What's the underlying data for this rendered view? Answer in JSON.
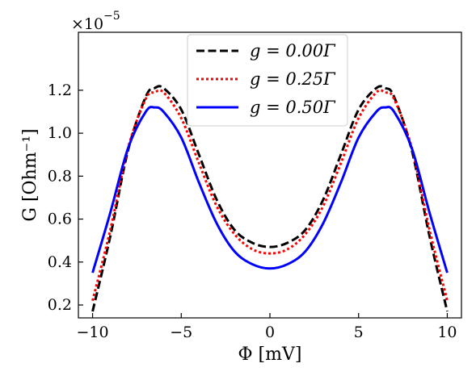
{
  "chart_data": {
    "type": "line",
    "xlabel": "Φ [mV]",
    "ylabel": "G [Ohm⁻¹]",
    "y_scale_label": "×10",
    "y_scale_exponent": "−5",
    "xlim": [
      -10.8,
      10.8
    ],
    "ylim": [
      0.14,
      1.47
    ],
    "x_ticks": [
      -10,
      -5,
      0,
      5,
      10
    ],
    "x_tick_labels": [
      "−10",
      "−5",
      "0",
      "5",
      "10"
    ],
    "y_ticks": [
      0.2,
      0.4,
      0.6,
      0.8,
      1.0,
      1.2
    ],
    "y_tick_labels": [
      "0.2",
      "0.4",
      "0.6",
      "0.8",
      "1.0",
      "1.2"
    ],
    "legend_position": "top-center",
    "series": [
      {
        "name": "g = 0.00Γ",
        "color": "#000000",
        "style": "dashed",
        "x": [
          -10,
          -9,
          -8,
          -7,
          -6.5,
          -6,
          -5,
          -4,
          -3,
          -2,
          -1,
          0,
          1,
          2,
          3,
          4,
          5,
          6,
          6.5,
          7,
          8,
          9,
          10
        ],
        "y": [
          0.17,
          0.52,
          0.92,
          1.17,
          1.21,
          1.21,
          1.11,
          0.9,
          0.69,
          0.55,
          0.49,
          0.47,
          0.49,
          0.55,
          0.69,
          0.9,
          1.11,
          1.21,
          1.21,
          1.17,
          0.92,
          0.52,
          0.17
        ]
      },
      {
        "name": "g = 0.25Γ",
        "color": "#ff0000",
        "style": "dotted",
        "x": [
          -10,
          -9,
          -8,
          -7,
          -6.5,
          -6,
          -5,
          -4,
          -3,
          -2,
          -1,
          0,
          1,
          2,
          3,
          4,
          5,
          6,
          6.5,
          7,
          8,
          9,
          10
        ],
        "y": [
          0.22,
          0.55,
          0.93,
          1.16,
          1.19,
          1.19,
          1.07,
          0.86,
          0.66,
          0.53,
          0.46,
          0.44,
          0.46,
          0.53,
          0.66,
          0.86,
          1.07,
          1.19,
          1.19,
          1.16,
          0.93,
          0.55,
          0.22
        ]
      },
      {
        "name": "g = 0.50Γ",
        "color": "#0000ff",
        "style": "solid",
        "x": [
          -10,
          -9,
          -8,
          -7,
          -6.5,
          -6,
          -5,
          -4,
          -3,
          -2,
          -1,
          0,
          1,
          2,
          3,
          4,
          5,
          6,
          6.5,
          7,
          8,
          9,
          10
        ],
        "y": [
          0.35,
          0.63,
          0.93,
          1.1,
          1.12,
          1.1,
          0.98,
          0.77,
          0.58,
          0.45,
          0.39,
          0.37,
          0.39,
          0.45,
          0.58,
          0.77,
          0.98,
          1.1,
          1.12,
          1.1,
          0.93,
          0.63,
          0.35
        ]
      }
    ]
  }
}
